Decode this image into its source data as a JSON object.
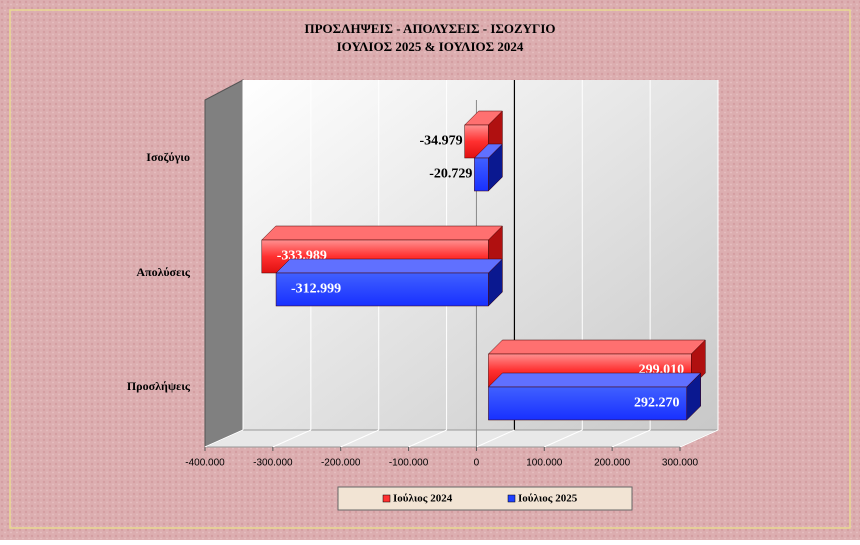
{
  "chart_data": {
    "type": "bar3d",
    "title": "ΠΡΟΣΛΗΨΕΙΣ - ΑΠΟΛΥΣΕΙΣ - ΙΣΟΖΥΓΙΟ",
    "subtitle": "ΙΟΥΛΙΟΣ 2025 & ΙΟΥΛΙΟΣ 2024",
    "categories": [
      "Ισοζύγιο",
      "Απολύσεις",
      "Προσλήψεις"
    ],
    "series": [
      {
        "name": "Ιούλιος 2024",
        "color": "#ff3030",
        "values": [
          -34979,
          -333989,
          299010
        ],
        "value_labels": [
          "-34.979",
          "-333.989",
          "299.010"
        ]
      },
      {
        "name": "Ιούλιος  2025",
        "color": "#2040ff",
        "values": [
          -20729,
          -312999,
          292270
        ],
        "value_labels": [
          "-20.729",
          "-312.999",
          "292.270"
        ]
      }
    ],
    "xlim": [
      -400000,
      300000
    ],
    "xticks": [
      {
        "value": -400000,
        "label": "-400.000"
      },
      {
        "value": -300000,
        "label": "-300.000"
      },
      {
        "value": -200000,
        "label": "-200.000"
      },
      {
        "value": -100000,
        "label": "-100.000"
      },
      0,
      {
        "value": 100000,
        "label": "100.000"
      },
      {
        "value": 200000,
        "label": "200.000"
      },
      {
        "value": 300000,
        "label": "300.000"
      }
    ],
    "grid": true,
    "legend": "bottom"
  }
}
